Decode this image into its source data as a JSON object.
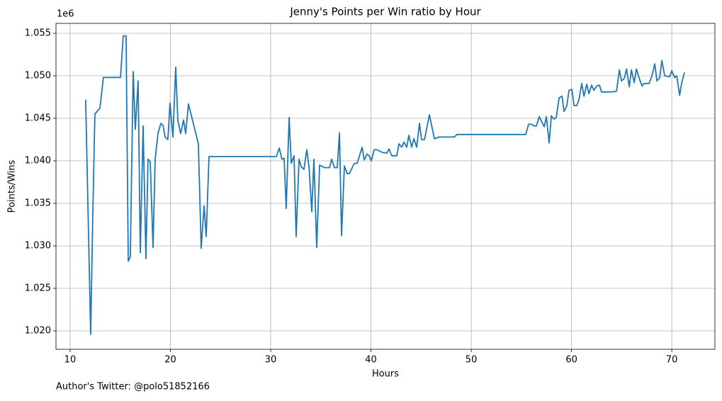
{
  "chart_data": {
    "type": "line",
    "title": "Jenny's Points per Win ratio by Hour",
    "x_label": "Hours",
    "y_label": "Points/Wins",
    "y_offset_label": "1e6",
    "footer": "Author's Twitter: @polo51852166",
    "grid": true,
    "xlim": [
      8.59,
      74.3
    ],
    "ylim": [
      1017833,
      1056167
    ],
    "xticks": [
      10,
      20,
      30,
      40,
      50,
      60,
      70
    ],
    "yticks": [
      {
        "value": 1020000,
        "label": "1.020"
      },
      {
        "value": 1025000,
        "label": "1.025"
      },
      {
        "value": 1030000,
        "label": "1.030"
      },
      {
        "value": 1035000,
        "label": "1.035"
      },
      {
        "value": 1040000,
        "label": "1.040"
      },
      {
        "value": 1045000,
        "label": "1.045"
      },
      {
        "value": 1050000,
        "label": "1.050"
      },
      {
        "value": 1055000,
        "label": "1.055"
      }
    ],
    "x": [
      11.55,
      12.05,
      12.26,
      12.47,
      12.97,
      13.32,
      15.02,
      15.3,
      15.58,
      15.8,
      16.0,
      16.29,
      16.5,
      16.78,
      17.0,
      17.28,
      17.56,
      17.77,
      17.99,
      18.27,
      18.48,
      18.76,
      19.05,
      19.26,
      19.47,
      19.75,
      19.96,
      20.25,
      20.53,
      20.74,
      21.02,
      21.31,
      21.52,
      21.8,
      22.79,
      23.07,
      23.36,
      23.57,
      23.85,
      30.57,
      30.85,
      31.13,
      31.34,
      31.55,
      31.84,
      32.05,
      32.33,
      32.54,
      32.83,
      33.04,
      33.32,
      33.6,
      33.82,
      34.1,
      34.31,
      34.59,
      34.88,
      35.37,
      35.87,
      36.08,
      36.36,
      36.64,
      36.86,
      37.07,
      37.35,
      37.63,
      37.84,
      38.34,
      38.62,
      39.12,
      39.33,
      39.61,
      39.82,
      40.04,
      40.32,
      40.6,
      41.1,
      41.59,
      41.8,
      42.08,
      42.58,
      42.79,
      43.07,
      43.29,
      43.57,
      43.78,
      44.06,
      44.28,
      44.56,
      44.84,
      45.05,
      45.34,
      45.83,
      46.33,
      46.82,
      48.3,
      48.59,
      55.44,
      55.72,
      56.0,
      56.29,
      56.5,
      56.78,
      57.28,
      57.49,
      57.77,
      57.99,
      58.27,
      58.48,
      58.76,
      59.05,
      59.26,
      59.54,
      59.75,
      60.04,
      60.25,
      60.53,
      60.74,
      61.02,
      61.24,
      61.52,
      61.73,
      62.01,
      62.23,
      62.51,
      62.79,
      63.0,
      63.5,
      64.0,
      64.49,
      64.77,
      64.98,
      65.27,
      65.48,
      65.76,
      65.97,
      66.25,
      66.47,
      66.75,
      67.03,
      67.24,
      67.74,
      68.02,
      68.3,
      68.52,
      68.8,
      69.01,
      69.29,
      69.79,
      70.0,
      70.28,
      70.49,
      70.78,
      70.99,
      71.27
    ],
    "series": [
      {
        "name": "Points/Wins",
        "color": "#1f77b4",
        "values": [
          1047200,
          1019600,
          1033500,
          1045500,
          1046200,
          1049800,
          1049800,
          1054700,
          1054700,
          1028200,
          1028700,
          1050500,
          1043700,
          1049400,
          1029200,
          1044100,
          1028500,
          1040200,
          1039900,
          1029800,
          1040200,
          1043200,
          1044400,
          1044200,
          1042800,
          1042500,
          1046800,
          1042800,
          1051000,
          1044800,
          1043200,
          1044800,
          1043200,
          1046700,
          1042000,
          1029700,
          1034700,
          1031100,
          1040500,
          1040500,
          1041500,
          1040200,
          1040300,
          1034400,
          1045100,
          1039700,
          1040600,
          1031100,
          1040200,
          1039300,
          1039000,
          1041300,
          1039300,
          1034000,
          1040200,
          1029800,
          1039500,
          1039200,
          1039200,
          1040200,
          1039200,
          1039200,
          1043300,
          1031200,
          1039400,
          1038500,
          1038500,
          1039700,
          1039700,
          1041600,
          1040100,
          1040800,
          1040600,
          1040000,
          1041300,
          1041300,
          1041000,
          1040900,
          1041400,
          1040600,
          1040600,
          1042000,
          1041600,
          1042200,
          1041600,
          1043000,
          1041600,
          1042600,
          1041600,
          1044400,
          1042500,
          1042500,
          1045400,
          1042600,
          1042800,
          1042800,
          1043100,
          1043100,
          1044300,
          1044300,
          1044100,
          1044100,
          1045200,
          1044000,
          1045200,
          1042100,
          1045300,
          1044900,
          1045100,
          1047400,
          1047600,
          1045800,
          1046500,
          1048300,
          1048400,
          1046500,
          1046500,
          1047200,
          1049100,
          1047600,
          1049000,
          1047900,
          1048900,
          1048300,
          1048800,
          1048900,
          1048100,
          1048100,
          1048100,
          1048200,
          1050700,
          1049400,
          1049700,
          1050800,
          1048700,
          1050700,
          1049200,
          1050800,
          1049700,
          1048800,
          1049100,
          1049100,
          1050000,
          1051400,
          1049400,
          1049800,
          1051800,
          1050000,
          1049900,
          1050600,
          1049800,
          1050000,
          1047700,
          1049200,
          1050400
        ]
      }
    ]
  }
}
